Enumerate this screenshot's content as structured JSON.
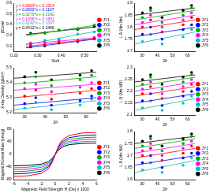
{
  "chart_data": [
    {
      "type": "scatter",
      "x_label": "Sinθ",
      "y_label": "βCosθ",
      "xlim": [
        0.2,
        0.55
      ],
      "xticks": [
        {
          "value": 0.2,
          "label": "0.20"
        },
        {
          "value": 0.3,
          "label": "0.30"
        },
        {
          "value": 0.4,
          "label": "0.40"
        },
        {
          "value": 0.5,
          "label": "0.50"
        }
      ],
      "ylim": [
        0.15,
        0.6
      ],
      "yticks": [
        0.2,
        0.3,
        0.4,
        0.5,
        0.6
      ],
      "grid": false,
      "legend": "right",
      "marker": "circle",
      "x": [
        0.27,
        0.33,
        0.39,
        0.47,
        0.54
      ],
      "series": [
        {
          "name": "JY1",
          "color": "#ff0000",
          "values": [
            0.205,
            0.208,
            0.234,
            0.245,
            0.27
          ],
          "equation": "y = 0.2503*x + 0.1314",
          "fit": {
            "x": [
              0.25,
              0.55
            ],
            "y": [
              0.194,
              0.269
            ]
          }
        },
        {
          "name": "JY2",
          "color": "#0000ff",
          "values": [
            0.19,
            0.198,
            0.226,
            0.238,
            0.265
          ],
          "equation": "y = 0.2802*x + 0.1107",
          "fit": {
            "x": [
              0.25,
              0.55
            ],
            "y": [
              0.181,
              0.265
            ]
          }
        },
        {
          "name": "JY3",
          "color": "#00aa00",
          "values": [
            0.31,
            0.317,
            0.349,
            0.362,
            0.395
          ],
          "equation": "y = 0.3279*x + 0.2142",
          "fit": {
            "x": [
              0.25,
              0.55
            ],
            "y": [
              0.296,
              0.395
            ]
          }
        },
        {
          "name": "JY4",
          "color": "#ff00ff",
          "values": [
            0.228,
            0.229,
            0.25,
            0.255,
            0.278
          ],
          "equation": "y = 0.1956*x + 0.1681",
          "fit": {
            "x": [
              0.25,
              0.55
            ],
            "y": [
              0.217,
              0.276
            ]
          }
        },
        {
          "name": "JY5",
          "color": "#00bfbf",
          "values": [
            0.214,
            0.251,
            0.266,
            0.31,
            0.33
          ],
          "equation": "y = 0.4240*x + 0.1047",
          "fit": {
            "x": [
              0.25,
              0.55
            ],
            "y": [
              0.211,
              0.338
            ]
          }
        },
        {
          "name": "JY6",
          "color": "#000000",
          "values": [
            0.318,
            0.321,
            0.346,
            0.355,
            0.38
          ],
          "equation": "y = 0.2412*x + 0.2456",
          "fit": {
            "x": [
              0.25,
              0.55
            ],
            "y": [
              0.306,
              0.378
            ]
          }
        }
      ]
    },
    {
      "type": "scatter",
      "x_label": "2θ",
      "y_label": "X-ray Density (g/cm³)",
      "xlim": [
        25,
        65
      ],
      "xticks": [
        30,
        40,
        50,
        60
      ],
      "ylim": [
        5.2,
        5.5
      ],
      "yticks": [
        5.2,
        5.3,
        5.4,
        5.5
      ],
      "grid": false,
      "legend": "right",
      "marker": "circle",
      "x": [
        30.1,
        35.5,
        43.1,
        57.0,
        62.6
      ],
      "series": [
        {
          "name": "JY1",
          "color": "#ff0000",
          "values": [
            5.31,
            5.35,
            5.29,
            5.33,
            5.36
          ],
          "fit": {
            "x": [
              25,
              65
            ],
            "y": [
              5.3,
              5.35
            ]
          }
        },
        {
          "name": "JY2",
          "color": "#0000ff",
          "values": [
            5.26,
            5.3,
            5.25,
            5.28,
            5.31
          ],
          "fit": {
            "x": [
              25,
              65
            ],
            "y": [
              5.25,
              5.3
            ]
          }
        },
        {
          "name": "JY3",
          "color": "#00aa00",
          "values": [
            5.4,
            5.44,
            5.38,
            5.42,
            5.45
          ],
          "fit": {
            "x": [
              25,
              65
            ],
            "y": [
              5.39,
              5.44
            ]
          }
        },
        {
          "name": "JY4",
          "color": "#ff00ff",
          "values": [
            5.36,
            5.39,
            5.34,
            5.37,
            5.4
          ],
          "fit": {
            "x": [
              25,
              65
            ],
            "y": [
              5.35,
              5.39
            ]
          }
        },
        {
          "name": "JY5",
          "color": "#00bfbf",
          "values": [
            5.23,
            5.27,
            5.22,
            5.25,
            5.29
          ],
          "fit": {
            "x": [
              25,
              65
            ],
            "y": [
              5.22,
              5.28
            ]
          }
        },
        {
          "name": "JY6",
          "color": "#000000",
          "values": [
            5.44,
            5.47,
            5.42,
            5.45,
            5.48
          ],
          "fit": {
            "x": [
              25,
              65
            ],
            "y": [
              5.43,
              5.47
            ]
          }
        }
      ]
    },
    {
      "type": "line",
      "x_label": "Magnetic Field Strength H (Oe) x 1000",
      "y_label": "Magnetic Moment Mass (emu/g)",
      "xlim": [
        -6,
        6
      ],
      "xticks": [
        -6,
        -4,
        -2,
        0,
        2,
        4,
        6
      ],
      "ylim": [
        -80,
        80
      ],
      "yticks": [
        -80,
        -40,
        0,
        40,
        80
      ],
      "grid": false,
      "legend": "right",
      "x": [
        -6,
        -4,
        -2,
        -1,
        -0.5,
        0,
        0.5,
        1,
        2,
        4,
        6
      ],
      "series": [
        {
          "name": "JY1",
          "color": "#ff0000",
          "values": [
            -70,
            -68,
            -60,
            -46,
            -28,
            0,
            28,
            46,
            60,
            68,
            70
          ]
        },
        {
          "name": "JY2",
          "color": "#0000ff",
          "values": [
            -62,
            -60,
            -53,
            -40,
            -25,
            0,
            25,
            40,
            53,
            60,
            62
          ]
        },
        {
          "name": "JY3",
          "color": "#00aa00",
          "values": [
            -55,
            -53,
            -47,
            -36,
            -22,
            0,
            22,
            36,
            47,
            53,
            55
          ]
        },
        {
          "name": "JY4",
          "color": "#ff00ff",
          "values": [
            -48,
            -47,
            -41,
            -31,
            -19,
            0,
            19,
            31,
            41,
            47,
            48
          ]
        },
        {
          "name": "JY5",
          "color": "#00bfbf",
          "values": [
            -42,
            -41,
            -36,
            -27,
            -17,
            0,
            17,
            27,
            36,
            41,
            42
          ]
        },
        {
          "name": "JY6",
          "color": "#000000",
          "values": [
            -36,
            -35,
            -31,
            -23,
            -14,
            0,
            14,
            23,
            31,
            35,
            36
          ]
        }
      ]
    },
    {
      "type": "scatter",
      "x_label": "2θ",
      "y_label": "L.A (Mn-Mn)",
      "xlim": [
        25,
        65
      ],
      "xticks": [
        30,
        40,
        50,
        60
      ],
      "ylim": [
        1.7,
        1.9
      ],
      "yticks": [
        1.7,
        1.75,
        1.8,
        1.85,
        1.9
      ],
      "grid": false,
      "legend": "right",
      "marker": "circle",
      "x": [
        30.1,
        35.5,
        43.1,
        57.0,
        62.6
      ],
      "series": [
        {
          "name": "JY1",
          "color": "#ff0000",
          "values": [
            1.8,
            1.83,
            1.78,
            1.81,
            1.84
          ],
          "fit": {
            "x": [
              25,
              65
            ],
            "y": [
              1.79,
              1.83
            ]
          }
        },
        {
          "name": "JY2",
          "color": "#0000ff",
          "values": [
            1.77,
            1.8,
            1.75,
            1.79,
            1.81
          ],
          "fit": {
            "x": [
              25,
              65
            ],
            "y": [
              1.76,
              1.8
            ]
          }
        },
        {
          "name": "JY3",
          "color": "#00aa00",
          "values": [
            1.84,
            1.87,
            1.82,
            1.85,
            1.88
          ],
          "fit": {
            "x": [
              25,
              65
            ],
            "y": [
              1.83,
              1.87
            ]
          }
        },
        {
          "name": "JY4",
          "color": "#ff00ff",
          "values": [
            1.82,
            1.85,
            1.8,
            1.83,
            1.86
          ],
          "fit": {
            "x": [
              25,
              65
            ],
            "y": [
              1.81,
              1.85
            ]
          }
        },
        {
          "name": "JY5",
          "color": "#00bfbf",
          "values": [
            1.74,
            1.77,
            1.73,
            1.76,
            1.79
          ],
          "fit": {
            "x": [
              25,
              65
            ],
            "y": [
              1.73,
              1.78
            ]
          }
        },
        {
          "name": "JY6",
          "color": "#000000",
          "values": [
            1.86,
            1.88,
            1.84,
            1.87,
            1.89
          ],
          "fit": {
            "x": [
              25,
              65
            ],
            "y": [
              1.85,
              1.88
            ]
          }
        }
      ]
    },
    {
      "type": "scatter",
      "x_label": "2θ",
      "y_label": "L.B (Mn-MB)",
      "xlim": [
        25,
        65
      ],
      "xticks": [
        30,
        40,
        50,
        60
      ],
      "ylim": [
        2.1,
        2.3
      ],
      "yticks": [
        2.1,
        2.15,
        2.2,
        2.25,
        2.3
      ],
      "grid": false,
      "legend": "right",
      "marker": "circle",
      "x": [
        30.1,
        35.5,
        43.1,
        57.0,
        62.6
      ],
      "series": [
        {
          "name": "JY1",
          "color": "#ff0000",
          "values": [
            2.19,
            2.22,
            2.17,
            2.2,
            2.23
          ],
          "fit": {
            "x": [
              25,
              65
            ],
            "y": [
              2.18,
              2.22
            ]
          }
        },
        {
          "name": "JY2",
          "color": "#0000ff",
          "values": [
            2.16,
            2.19,
            2.14,
            2.18,
            2.2
          ],
          "fit": {
            "x": [
              25,
              65
            ],
            "y": [
              2.15,
              2.19
            ]
          }
        },
        {
          "name": "JY3",
          "color": "#00aa00",
          "values": [
            2.23,
            2.26,
            2.21,
            2.24,
            2.27
          ],
          "fit": {
            "x": [
              25,
              65
            ],
            "y": [
              2.22,
              2.26
            ]
          }
        },
        {
          "name": "JY4",
          "color": "#ff00ff",
          "values": [
            2.21,
            2.24,
            2.19,
            2.22,
            2.25
          ],
          "fit": {
            "x": [
              25,
              65
            ],
            "y": [
              2.2,
              2.24
            ]
          }
        },
        {
          "name": "JY5",
          "color": "#00bfbf",
          "values": [
            2.13,
            2.16,
            2.12,
            2.15,
            2.18
          ],
          "fit": {
            "x": [
              25,
              65
            ],
            "y": [
              2.12,
              2.17
            ]
          }
        },
        {
          "name": "JY6",
          "color": "#000000",
          "values": [
            2.25,
            2.27,
            2.23,
            2.26,
            2.28
          ],
          "fit": {
            "x": [
              25,
              65
            ],
            "y": [
              2.24,
              2.27
            ]
          }
        }
      ]
    },
    {
      "type": "scatter",
      "x_label": "2θ",
      "y_label": "L.B (Mn-MA)",
      "xlim": [
        25,
        65
      ],
      "xticks": [
        30,
        40,
        50,
        60
      ],
      "ylim": [
        1.6,
        1.8
      ],
      "yticks": [
        1.6,
        1.65,
        1.7,
        1.75,
        1.8
      ],
      "grid": false,
      "legend": "right",
      "marker": "circle",
      "x": [
        30.1,
        35.5,
        43.1,
        57.0,
        62.6
      ],
      "series": [
        {
          "name": "JY1",
          "color": "#ff0000",
          "values": [
            1.7,
            1.73,
            1.68,
            1.71,
            1.74
          ],
          "fit": {
            "x": [
              25,
              65
            ],
            "y": [
              1.69,
              1.73
            ]
          }
        },
        {
          "name": "JY2",
          "color": "#0000ff",
          "values": [
            1.67,
            1.7,
            1.65,
            1.69,
            1.71
          ],
          "fit": {
            "x": [
              25,
              65
            ],
            "y": [
              1.66,
              1.7
            ]
          }
        },
        {
          "name": "JY3",
          "color": "#00aa00",
          "values": [
            1.74,
            1.77,
            1.72,
            1.75,
            1.78
          ],
          "fit": {
            "x": [
              25,
              65
            ],
            "y": [
              1.73,
              1.77
            ]
          }
        },
        {
          "name": "JY4",
          "color": "#ff00ff",
          "values": [
            1.72,
            1.75,
            1.7,
            1.73,
            1.76
          ],
          "fit": {
            "x": [
              25,
              65
            ],
            "y": [
              1.71,
              1.75
            ]
          }
        },
        {
          "name": "JY5",
          "color": "#00bfbf",
          "values": [
            1.64,
            1.67,
            1.63,
            1.66,
            1.69
          ],
          "fit": {
            "x": [
              25,
              65
            ],
            "y": [
              1.63,
              1.68
            ]
          }
        },
        {
          "name": "JY6",
          "color": "#000000",
          "values": [
            1.76,
            1.78,
            1.74,
            1.77,
            1.79
          ],
          "fit": {
            "x": [
              25,
              65
            ],
            "y": [
              1.75,
              1.78
            ]
          }
        }
      ]
    }
  ]
}
